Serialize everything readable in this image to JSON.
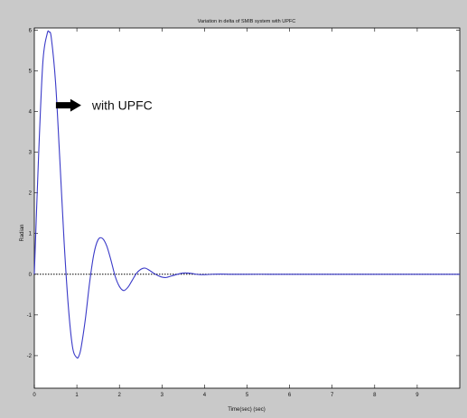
{
  "colors": {
    "figure_background": "#c9c9c9",
    "axes_background": "#ffffff",
    "line": "#3a3ac8",
    "baseline": "#000000",
    "arrow": "#000000"
  },
  "chart_data": {
    "type": "line",
    "title": "Variation in delta of SMIB system with UPFC",
    "xlabel": "Time(sec) (sec)",
    "ylabel": "Radian",
    "xlim": [
      0,
      10
    ],
    "ylim": [
      -2.8,
      6.05
    ],
    "xticks": [
      0,
      1,
      2,
      3,
      4,
      5,
      6,
      7,
      8,
      9
    ],
    "yticks": [
      -2,
      -1,
      0,
      1,
      2,
      3,
      4,
      5,
      6
    ],
    "grid": false,
    "series": [
      {
        "x": [
          0,
          0.1,
          0.2,
          0.3,
          0.35,
          0.4,
          0.5,
          0.6,
          0.7,
          0.8,
          0.9,
          1.0,
          1.05,
          1.1,
          1.2,
          1.3,
          1.4,
          1.5,
          1.6,
          1.7,
          1.8,
          1.9,
          2.0,
          2.1,
          2.2,
          2.3,
          2.4,
          2.5,
          2.6,
          2.7,
          2.8,
          2.9,
          3.0,
          3.1,
          3.2,
          3.3,
          3.4,
          3.5,
          3.6,
          3.7,
          3.8,
          3.9,
          4.0,
          4.2,
          4.4,
          4.6,
          4.8,
          5.0,
          5.5,
          6.0,
          7.0,
          8.0,
          9.0,
          10.0
        ],
        "y": [
          0,
          2.9,
          5.2,
          5.9,
          5.95,
          5.8,
          4.7,
          2.8,
          0.8,
          -0.8,
          -1.8,
          -2.05,
          -2.0,
          -1.8,
          -1.1,
          -0.2,
          0.5,
          0.85,
          0.88,
          0.7,
          0.35,
          -0.05,
          -0.3,
          -0.4,
          -0.32,
          -0.15,
          0.02,
          0.12,
          0.15,
          0.1,
          0.03,
          -0.03,
          -0.07,
          -0.08,
          -0.05,
          -0.02,
          0.01,
          0.03,
          0.03,
          0.02,
          0.0,
          -0.01,
          -0.01,
          0.0,
          0.005,
          0.0,
          -0.002,
          0.0,
          0.0,
          0.0,
          0.0,
          0.0,
          0.0,
          0.0
        ]
      }
    ],
    "baseline_y": 0,
    "annotations": [
      {
        "text": "with UPFC",
        "at_x": 0.55,
        "at_y": 4.15
      }
    ]
  }
}
